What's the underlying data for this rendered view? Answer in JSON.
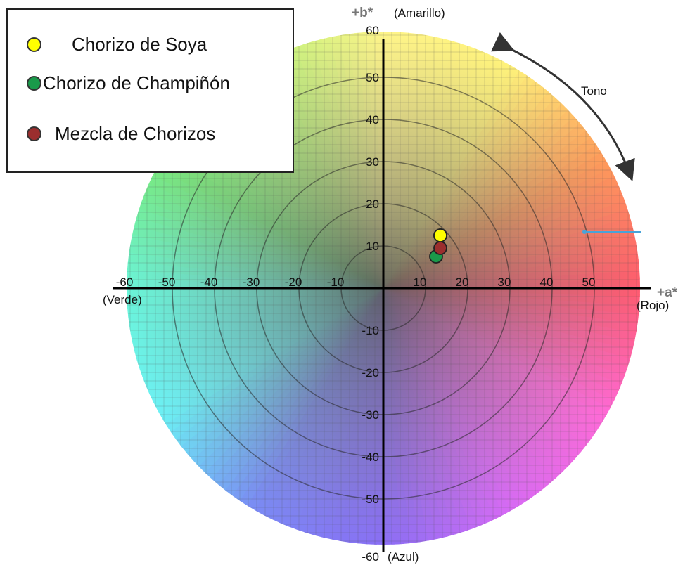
{
  "chart_data": {
    "type": "scatter",
    "xlim": [
      -60,
      60
    ],
    "ylim": [
      -60,
      60
    ],
    "x_ticks": [
      -60,
      -50,
      -40,
      -30,
      -20,
      -10,
      10,
      20,
      30,
      40,
      50
    ],
    "y_ticks": [
      60,
      50,
      40,
      30,
      20,
      10,
      -10,
      -20,
      -30,
      -40,
      -50,
      -60
    ],
    "x_axis_symbol": "+a*",
    "y_axis_symbol": "+b*",
    "labels": {
      "top": "(Amarillo)",
      "bottom": "(Azul)",
      "left": "(Verde)",
      "right": "(Rojo)",
      "hue": "Tono"
    },
    "grid": true,
    "rings": [
      10,
      20,
      30,
      40,
      50
    ],
    "series": [
      {
        "name": "Chorizo de Soya",
        "color": "#ffff00",
        "x": 13.5,
        "y": 12.5
      },
      {
        "name": "Chorizo de Champiñón",
        "color": "#1a9a4a",
        "x": 12.5,
        "y": 7.5
      },
      {
        "name": "Mezcla de Chorizos",
        "color": "#9b2e2e",
        "x": 13.5,
        "y": 9.5
      }
    ],
    "legend_position": "top-left"
  },
  "legend": {
    "items": [
      {
        "label": "Chorizo de Soya",
        "color": "#ffff00"
      },
      {
        "label": "Chorizo de Champiñón",
        "color": "#1a9a4a"
      },
      {
        "label": "Mezcla de Chorizos",
        "color": "#9b2e2e"
      }
    ]
  }
}
